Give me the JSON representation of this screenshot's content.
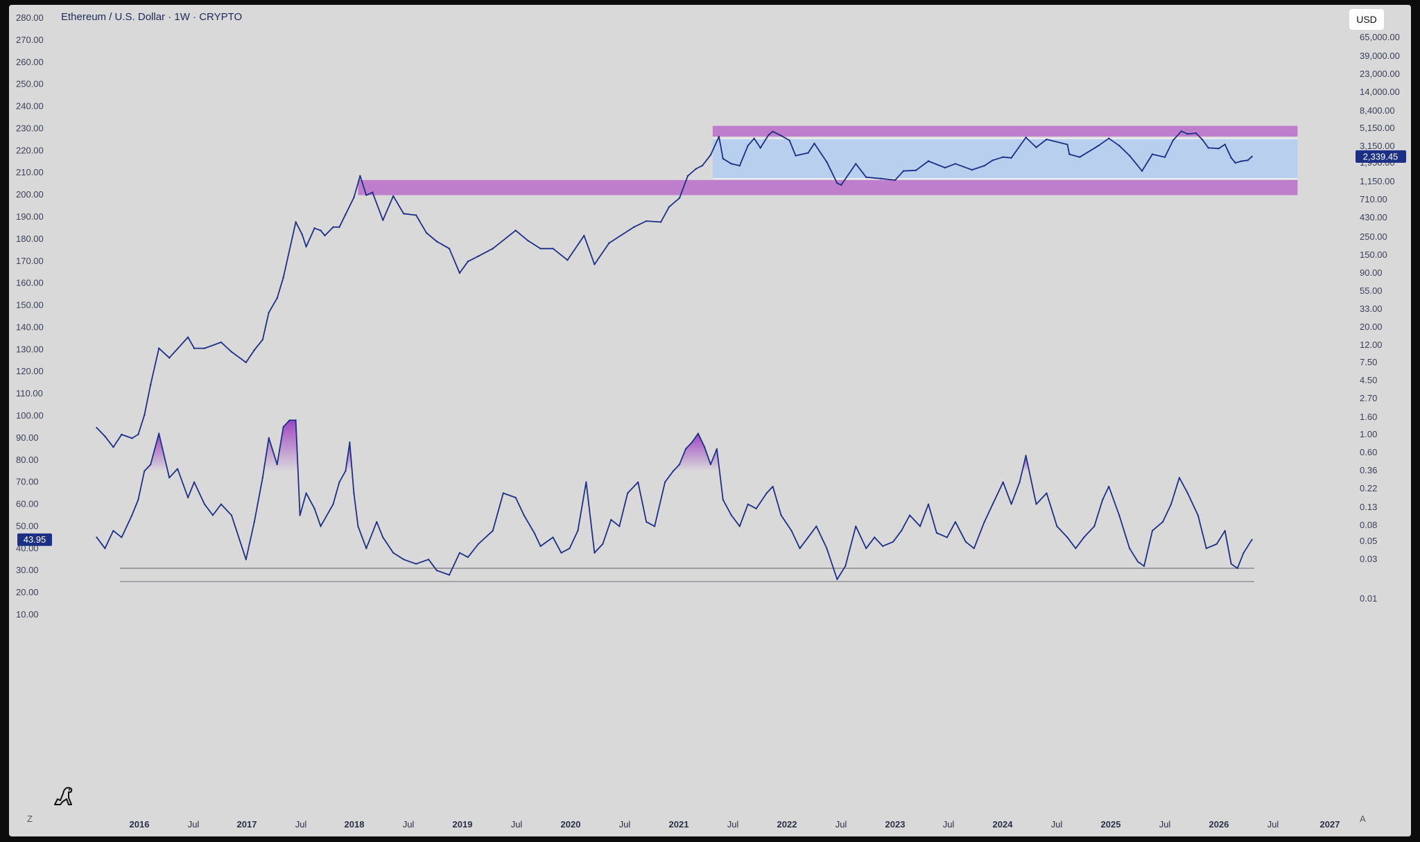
{
  "header": {
    "title": "Ethereum / U.S. Dollar · 1W · CRYPTO",
    "currency_button": "USD",
    "left_corner": "Z",
    "right_corner": "A"
  },
  "chart_data": {
    "type": "line",
    "x_axis_labels": [
      "2016",
      "Jul",
      "2017",
      "Jul",
      "2018",
      "Jul",
      "2019",
      "Jul",
      "2020",
      "Jul",
      "2021",
      "Jul",
      "2022",
      "Jul",
      "2023",
      "Jul",
      "2024",
      "Jul",
      "2025",
      "Jul",
      "2026",
      "Jul",
      "2027"
    ],
    "x_axis_years": [
      "2016",
      "2017",
      "2018",
      "2019",
      "2020",
      "2021",
      "2022",
      "2023",
      "2024",
      "2025",
      "2026",
      "2027"
    ],
    "left_axis": {
      "ticks": [
        280,
        270,
        260,
        250,
        240,
        230,
        220,
        210,
        200,
        190,
        180,
        170,
        160,
        150,
        140,
        130,
        120,
        110,
        100,
        90,
        80,
        70,
        60,
        50,
        40,
        30,
        20,
        10
      ],
      "current_value_label": "43.95",
      "ylim": [
        10,
        280
      ]
    },
    "right_axis": {
      "scale": "log",
      "ticks": [
        "65,000.00",
        "39,000.00",
        "23,000.00",
        "14,000.00",
        "8,400.00",
        "5,150.00",
        "3,150.00",
        "1,950.00",
        "1,150.00",
        "710.00",
        "430.00",
        "250.00",
        "150.00",
        "90.00",
        "55.00",
        "33.00",
        "20.00",
        "12.00",
        "7.50",
        "4.50",
        "2.70",
        "1.60",
        "1.00",
        "0.60",
        "0.36",
        "0.22",
        "0.13",
        "0.08",
        "0.05",
        "0.03",
        "0.01"
      ],
      "current_price_label": "2,339.45"
    },
    "price_series": {
      "points": [
        [
          "2015-08-10",
          1.2
        ],
        [
          "2015-09-07",
          0.95
        ],
        [
          "2015-10-05",
          0.7
        ],
        [
          "2015-11-02",
          1.0
        ],
        [
          "2015-12-07",
          0.9
        ],
        [
          "2015-12-28",
          1.0
        ],
        [
          "2016-01-18",
          1.7
        ],
        [
          "2016-02-08",
          4.0
        ],
        [
          "2016-03-07",
          11
        ],
        [
          "2016-04-11",
          8.5
        ],
        [
          "2016-06-13",
          15
        ],
        [
          "2016-07-04",
          11
        ],
        [
          "2016-08-08",
          11
        ],
        [
          "2016-10-03",
          13
        ],
        [
          "2016-11-07",
          10
        ],
        [
          "2016-12-26",
          7.5
        ],
        [
          "2017-01-23",
          10.5
        ],
        [
          "2017-02-20",
          14
        ],
        [
          "2017-03-13",
          30
        ],
        [
          "2017-04-10",
          45
        ],
        [
          "2017-05-01",
          80
        ],
        [
          "2017-06-12",
          380
        ],
        [
          "2017-07-03",
          270
        ],
        [
          "2017-07-17",
          190
        ],
        [
          "2017-08-14",
          320
        ],
        [
          "2017-09-04",
          300
        ],
        [
          "2017-09-18",
          260
        ],
        [
          "2017-10-16",
          330
        ],
        [
          "2017-11-06",
          330
        ],
        [
          "2017-11-27",
          470
        ],
        [
          "2017-12-25",
          750
        ],
        [
          "2018-01-15",
          1350
        ],
        [
          "2018-02-05",
          800
        ],
        [
          "2018-02-26",
          860
        ],
        [
          "2018-04-02",
          400
        ],
        [
          "2018-05-07",
          780
        ],
        [
          "2018-06-11",
          480
        ],
        [
          "2018-07-23",
          460
        ],
        [
          "2018-08-27",
          280
        ],
        [
          "2018-10-01",
          220
        ],
        [
          "2018-11-12",
          180
        ],
        [
          "2018-12-17",
          90
        ],
        [
          "2019-01-14",
          125
        ],
        [
          "2019-02-18",
          145
        ],
        [
          "2019-04-08",
          180
        ],
        [
          "2019-06-24",
          300
        ],
        [
          "2019-08-05",
          225
        ],
        [
          "2019-09-16",
          180
        ],
        [
          "2019-10-28",
          180
        ],
        [
          "2019-12-16",
          130
        ],
        [
          "2020-02-10",
          260
        ],
        [
          "2020-03-16",
          115
        ],
        [
          "2020-05-04",
          210
        ],
        [
          "2020-07-27",
          330
        ],
        [
          "2020-09-07",
          390
        ],
        [
          "2020-10-26",
          380
        ],
        [
          "2020-11-23",
          580
        ],
        [
          "2020-12-28",
          740
        ],
        [
          "2021-01-25",
          1350
        ],
        [
          "2021-02-22",
          1650
        ],
        [
          "2021-03-15",
          1800
        ],
        [
          "2021-04-12",
          2450
        ],
        [
          "2021-05-10",
          4100
        ],
        [
          "2021-05-24",
          2200
        ],
        [
          "2021-06-21",
          1900
        ],
        [
          "2021-07-19",
          1800
        ],
        [
          "2021-08-16",
          3200
        ],
        [
          "2021-09-06",
          3900
        ],
        [
          "2021-09-27",
          3000
        ],
        [
          "2021-10-25",
          4300
        ],
        [
          "2021-11-08",
          4700
        ],
        [
          "2021-12-06",
          4200
        ],
        [
          "2022-01-03",
          3700
        ],
        [
          "2022-01-24",
          2400
        ],
        [
          "2022-03-07",
          2600
        ],
        [
          "2022-03-28",
          3400
        ],
        [
          "2022-05-09",
          2000
        ],
        [
          "2022-06-13",
          1100
        ],
        [
          "2022-06-27",
          1050
        ],
        [
          "2022-08-15",
          1900
        ],
        [
          "2022-09-19",
          1300
        ],
        [
          "2022-11-07",
          1250
        ],
        [
          "2022-12-26",
          1200
        ],
        [
          "2023-01-23",
          1550
        ],
        [
          "2023-03-06",
          1580
        ],
        [
          "2023-04-17",
          2050
        ],
        [
          "2023-06-12",
          1700
        ],
        [
          "2023-07-17",
          1900
        ],
        [
          "2023-09-11",
          1600
        ],
        [
          "2023-10-23",
          1800
        ],
        [
          "2023-11-20",
          2100
        ],
        [
          "2023-12-25",
          2300
        ],
        [
          "2024-01-22",
          2250
        ],
        [
          "2024-03-11",
          4000
        ],
        [
          "2024-04-15",
          3050
        ],
        [
          "2024-05-20",
          3800
        ],
        [
          "2024-07-29",
          3300
        ],
        [
          "2024-08-05",
          2500
        ],
        [
          "2024-09-09",
          2300
        ],
        [
          "2024-11-11",
          3200
        ],
        [
          "2024-12-16",
          3900
        ],
        [
          "2025-01-20",
          3200
        ],
        [
          "2025-02-24",
          2400
        ],
        [
          "2025-04-07",
          1550
        ],
        [
          "2025-05-12",
          2500
        ],
        [
          "2025-06-23",
          2300
        ],
        [
          "2025-07-21",
          3700
        ],
        [
          "2025-08-18",
          4750
        ],
        [
          "2025-09-08",
          4400
        ],
        [
          "2025-10-06",
          4500
        ],
        [
          "2025-10-27",
          3800
        ],
        [
          "2025-11-17",
          3000
        ],
        [
          "2025-12-22",
          2950
        ],
        [
          "2026-01-12",
          3300
        ],
        [
          "2026-02-02",
          2250
        ],
        [
          "2026-02-16",
          1950
        ],
        [
          "2026-03-09",
          2050
        ],
        [
          "2026-03-30",
          2100
        ],
        [
          "2026-04-13",
          2339.45
        ]
      ]
    },
    "oscillator_series": {
      "last_value": 43.95,
      "points": [
        [
          "2015-08-10",
          45
        ],
        [
          "2015-09-07",
          40
        ],
        [
          "2015-10-05",
          48
        ],
        [
          "2015-11-02",
          45
        ],
        [
          "2015-12-07",
          55
        ],
        [
          "2015-12-28",
          62
        ],
        [
          "2016-01-18",
          75
        ],
        [
          "2016-02-08",
          78
        ],
        [
          "2016-03-07",
          92
        ],
        [
          "2016-04-11",
          72
        ],
        [
          "2016-05-09",
          76
        ],
        [
          "2016-06-13",
          63
        ],
        [
          "2016-07-04",
          70
        ],
        [
          "2016-08-08",
          60
        ],
        [
          "2016-09-05",
          55
        ],
        [
          "2016-10-03",
          60
        ],
        [
          "2016-11-07",
          55
        ],
        [
          "2016-12-26",
          35
        ],
        [
          "2017-01-23",
          52
        ],
        [
          "2017-02-20",
          72
        ],
        [
          "2017-03-13",
          90
        ],
        [
          "2017-04-10",
          78
        ],
        [
          "2017-05-01",
          95
        ],
        [
          "2017-05-22",
          98
        ],
        [
          "2017-06-12",
          98
        ],
        [
          "2017-06-26",
          55
        ],
        [
          "2017-07-17",
          65
        ],
        [
          "2017-08-14",
          58
        ],
        [
          "2017-09-04",
          50
        ],
        [
          "2017-10-16",
          60
        ],
        [
          "2017-11-06",
          70
        ],
        [
          "2017-11-27",
          75
        ],
        [
          "2017-12-11",
          88
        ],
        [
          "2017-12-25",
          65
        ],
        [
          "2018-01-08",
          50
        ],
        [
          "2018-02-05",
          40
        ],
        [
          "2018-03-12",
          52
        ],
        [
          "2018-04-02",
          45
        ],
        [
          "2018-05-07",
          38
        ],
        [
          "2018-06-11",
          35
        ],
        [
          "2018-07-23",
          33
        ],
        [
          "2018-09-03",
          35
        ],
        [
          "2018-10-01",
          30
        ],
        [
          "2018-11-12",
          28
        ],
        [
          "2018-12-17",
          38
        ],
        [
          "2019-01-14",
          36
        ],
        [
          "2019-02-18",
          42
        ],
        [
          "2019-04-08",
          48
        ],
        [
          "2019-05-13",
          65
        ],
        [
          "2019-06-24",
          63
        ],
        [
          "2019-07-22",
          55
        ],
        [
          "2019-08-26",
          47
        ],
        [
          "2019-09-16",
          41
        ],
        [
          "2019-10-28",
          45
        ],
        [
          "2019-11-25",
          38
        ],
        [
          "2019-12-23",
          40
        ],
        [
          "2020-01-20",
          48
        ],
        [
          "2020-02-17",
          70
        ],
        [
          "2020-03-16",
          38
        ],
        [
          "2020-04-13",
          42
        ],
        [
          "2020-05-11",
          53
        ],
        [
          "2020-06-08",
          50
        ],
        [
          "2020-07-06",
          65
        ],
        [
          "2020-08-10",
          70
        ],
        [
          "2020-09-07",
          52
        ],
        [
          "2020-10-05",
          50
        ],
        [
          "2020-11-09",
          70
        ],
        [
          "2020-12-07",
          75
        ],
        [
          "2020-12-28",
          78
        ],
        [
          "2021-01-18",
          85
        ],
        [
          "2021-02-08",
          88
        ],
        [
          "2021-03-01",
          92
        ],
        [
          "2021-03-22",
          86
        ],
        [
          "2021-04-12",
          78
        ],
        [
          "2021-05-03",
          85
        ],
        [
          "2021-05-24",
          62
        ],
        [
          "2021-06-21",
          55
        ],
        [
          "2021-07-19",
          50
        ],
        [
          "2021-08-16",
          60
        ],
        [
          "2021-09-13",
          58
        ],
        [
          "2021-10-18",
          65
        ],
        [
          "2021-11-08",
          68
        ],
        [
          "2021-12-06",
          55
        ],
        [
          "2022-01-10",
          48
        ],
        [
          "2022-02-07",
          40
        ],
        [
          "2022-03-07",
          45
        ],
        [
          "2022-04-04",
          50
        ],
        [
          "2022-05-09",
          40
        ],
        [
          "2022-06-13",
          26
        ],
        [
          "2022-07-11",
          32
        ],
        [
          "2022-08-15",
          50
        ],
        [
          "2022-09-19",
          40
        ],
        [
          "2022-10-17",
          45
        ],
        [
          "2022-11-14",
          41
        ],
        [
          "2022-12-19",
          43
        ],
        [
          "2023-01-16",
          48
        ],
        [
          "2023-02-13",
          55
        ],
        [
          "2023-03-20",
          50
        ],
        [
          "2023-04-17",
          60
        ],
        [
          "2023-05-15",
          47
        ],
        [
          "2023-06-19",
          45
        ],
        [
          "2023-07-17",
          52
        ],
        [
          "2023-08-21",
          43
        ],
        [
          "2023-09-18",
          40
        ],
        [
          "2023-10-23",
          52
        ],
        [
          "2023-11-20",
          60
        ],
        [
          "2023-12-25",
          70
        ],
        [
          "2024-01-22",
          60
        ],
        [
          "2024-02-19",
          70
        ],
        [
          "2024-03-11",
          82
        ],
        [
          "2024-04-15",
          60
        ],
        [
          "2024-05-20",
          65
        ],
        [
          "2024-06-24",
          50
        ],
        [
          "2024-07-29",
          45
        ],
        [
          "2024-08-26",
          40
        ],
        [
          "2024-09-23",
          45
        ],
        [
          "2024-10-28",
          50
        ],
        [
          "2024-11-25",
          62
        ],
        [
          "2024-12-16",
          68
        ],
        [
          "2025-01-20",
          55
        ],
        [
          "2025-02-24",
          40
        ],
        [
          "2025-03-24",
          34
        ],
        [
          "2025-04-14",
          32
        ],
        [
          "2025-05-12",
          48
        ],
        [
          "2025-06-16",
          52
        ],
        [
          "2025-07-14",
          60
        ],
        [
          "2025-08-11",
          72
        ],
        [
          "2025-09-08",
          65
        ],
        [
          "2025-10-13",
          55
        ],
        [
          "2025-11-10",
          40
        ],
        [
          "2025-12-15",
          42
        ],
        [
          "2026-01-12",
          48
        ],
        [
          "2026-02-02",
          33
        ],
        [
          "2026-02-23",
          31
        ],
        [
          "2026-03-16",
          38
        ],
        [
          "2026-04-13",
          43.95
        ]
      ]
    },
    "oscillator_reference_levels": [
      31,
      25
    ],
    "price_zones": [
      {
        "from": "2018-01-08",
        "to": "2026-09-14",
        "low": 800,
        "high": 1200
      },
      {
        "from": "2021-04-19",
        "to": "2026-09-14",
        "low": 4100,
        "high": 5500
      },
      {
        "from": "2021-04-19",
        "to": "2026-09-14",
        "low": 1250,
        "high": 3900
      }
    ],
    "colors": {
      "series": "#1b2f86",
      "zone": "#bb73c9",
      "range_box": "#b2cdf0",
      "oscillator_fill": "#9c3ec0",
      "badge": "#1b2f86"
    },
    "grid": false
  }
}
